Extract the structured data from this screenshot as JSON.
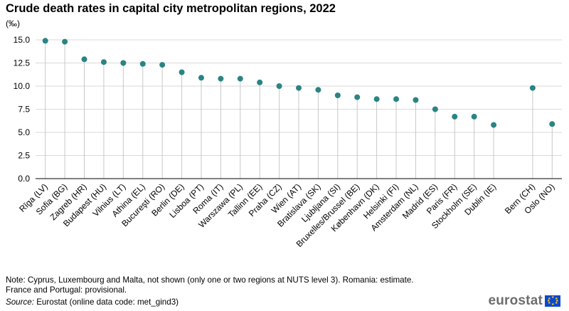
{
  "title": "Crude death rates in capital city metropolitan regions, 2022",
  "unit_label": "(‰)",
  "note_line1": "Note: Cyprus, Luxembourg and Malta, not shown (only one or two regions at NUTS level 3). Romania: estimate.",
  "note_line2": "France and Portugal: provisional.",
  "source_label": "Source:",
  "source_text": "Eurostat (online data code: met_gind3)",
  "logo_text": "eurostat",
  "colors": {
    "point": "#2a8484",
    "stem": "#c8c8c8",
    "grid": "#d9d9d9",
    "axis": "#000000"
  },
  "chart_data": {
    "type": "scatter",
    "style": "lollipop",
    "title": "Crude death rates in capital city metropolitan regions, 2022",
    "ylabel": "(‰)",
    "xlabel": "",
    "ylim": [
      0,
      15
    ],
    "yticks": [
      "0.0",
      "2.5",
      "5.0",
      "7.5",
      "10.0",
      "12.5",
      "15.0"
    ],
    "grid": true,
    "categories": [
      "Rīga (LV)",
      "Sofia (BG)",
      "Zagreb (HR)",
      "Budapest (HU)",
      "Vilnius (LT)",
      "Athina (EL)",
      "Bucureşti (RO)",
      "Berlin (DE)",
      "Lisboa (PT)",
      "Roma (IT)",
      "Warszawa (PL)",
      "Tallinn (EE)",
      "Praha (CZ)",
      "Wien (AT)",
      "Bratislava (SK)",
      "Ljubljana (SI)",
      "Bruxelles/Brussel (BE)",
      "København (DK)",
      "Helsinki (FI)",
      "Amsterdam (NL)",
      "Madrid (ES)",
      "Paris (FR)",
      "Stockholm (SE)",
      "Dublin (IE)",
      "Bern (CH)",
      "Oslo (NO)"
    ],
    "values": [
      14.9,
      14.8,
      12.9,
      12.6,
      12.5,
      12.4,
      12.3,
      11.5,
      10.9,
      10.8,
      10.8,
      10.4,
      10.0,
      9.8,
      9.6,
      9.0,
      8.8,
      8.6,
      8.6,
      8.5,
      7.5,
      6.7,
      6.7,
      5.8,
      9.8,
      5.9
    ],
    "groups": [
      24,
      2
    ]
  }
}
